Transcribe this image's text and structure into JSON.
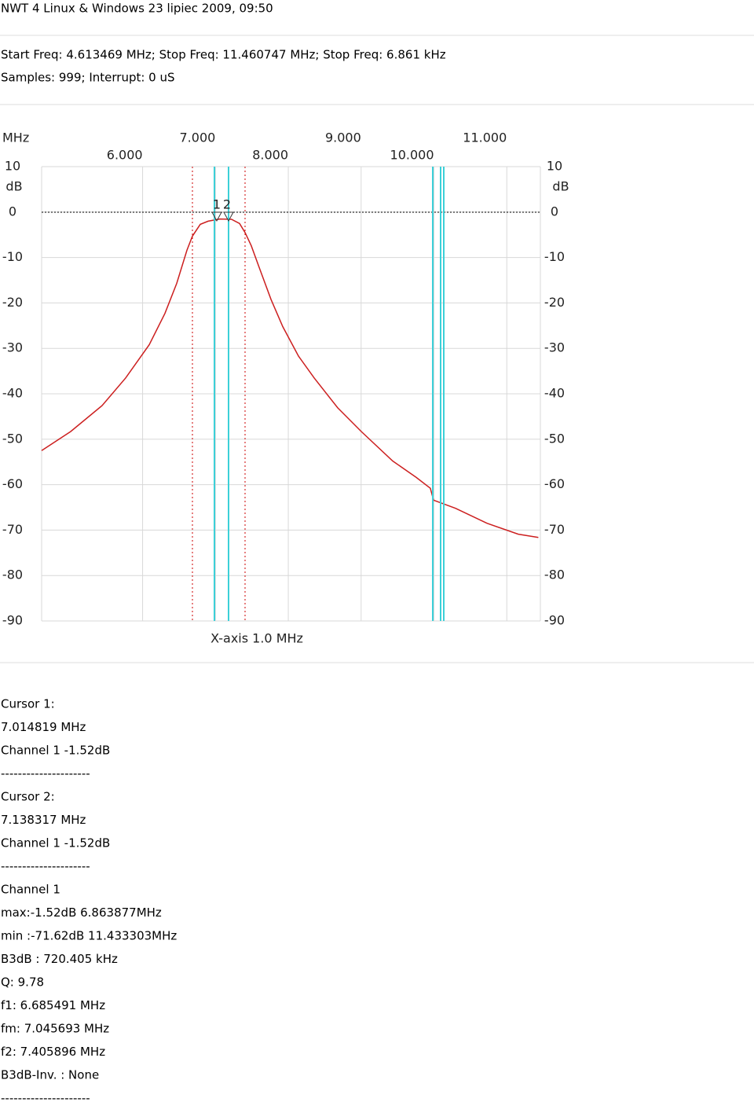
{
  "header": {
    "title": "NWT 4 Linux & Windows  23 lipiec 2009, 09:50",
    "params": [
      "Start Freq: 4.613469 MHz; Stop Freq: 11.460747 MHz; Stop Freq: 6.861 kHz",
      "Samples:  999; Interrupt:    0 uS"
    ]
  },
  "chart_data": {
    "type": "line",
    "x_unit": "MHz",
    "y_unit": "dB",
    "x_label": "X-axis 1.0 MHz",
    "cursor_labels": [
      "1",
      "2"
    ],
    "xlim": [
      4.613469,
      11.460747
    ],
    "ylim": [
      -90,
      10
    ],
    "xticks": [
      {
        "value": 6,
        "label": "6.000"
      },
      {
        "value": 7,
        "label": "7.000"
      },
      {
        "value": 8,
        "label": "8.000"
      },
      {
        "value": 9,
        "label": "9.000"
      },
      {
        "value": 10,
        "label": "10.000"
      },
      {
        "value": 11,
        "label": "11.000"
      }
    ],
    "yticks": [
      -90,
      -80,
      -70,
      -60,
      -50,
      -40,
      -30,
      -20,
      -10,
      0,
      10
    ],
    "grid": true,
    "x": [
      4.613,
      5.012,
      5.444,
      5.767,
      6.091,
      6.306,
      6.468,
      6.608,
      6.684,
      6.792,
      6.9,
      7.06,
      7.22,
      7.331,
      7.406,
      7.492,
      7.6,
      7.762,
      7.924,
      8.14,
      8.355,
      8.679,
      9.002,
      9.434,
      9.757,
      9.95,
      9.994,
      10.296,
      10.727,
      11.158,
      11.433
    ],
    "series": [
      {
        "color": "#cc1f1f",
        "values": [
          -52.5,
          -48.3,
          -42.6,
          -36.5,
          -29.2,
          -22.3,
          -15.7,
          -8.4,
          -5.3,
          -2.7,
          -2.0,
          -1.52,
          -1.6,
          -2.5,
          -4.5,
          -7.4,
          -12.2,
          -19.2,
          -25.2,
          -31.7,
          -36.5,
          -43.1,
          -48.3,
          -54.8,
          -58.4,
          -60.8,
          -63.4,
          -65.2,
          -68.5,
          -70.9,
          -71.62
        ]
      }
    ]
  },
  "results": [
    "Cursor 1:",
    "7.014819 MHz",
    "Channel 1 -1.52dB",
    "---------------------",
    "Cursor 2:",
    "7.138317 MHz",
    "Channel 1 -1.52dB",
    "---------------------",
    "Channel 1",
    "max:-1.52dB 6.863877MHz",
    "min :-71.62dB 11.433303MHz",
    "B3dB : 720.405 kHz",
    "Q: 9.78",
    "f1: 6.685491 MHz",
    "fm: 7.045693 MHz",
    "f2: 7.405896 MHz",
    "B3dB-Inv. : None",
    "---------------------"
  ]
}
